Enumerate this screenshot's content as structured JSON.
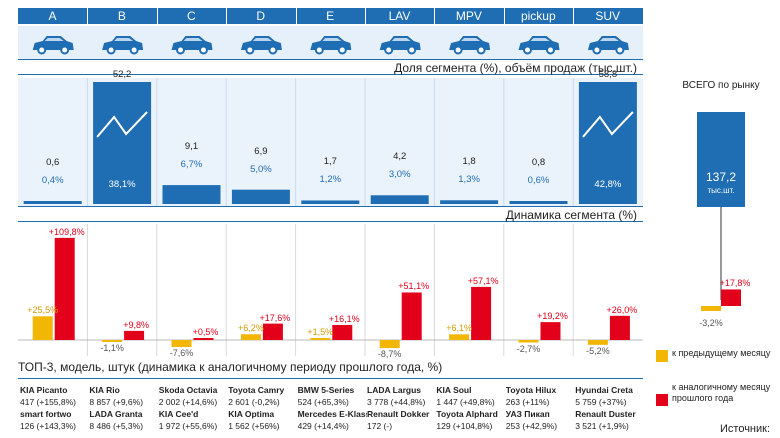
{
  "colors": {
    "blue": "#1f6db3",
    "light": "#eaf2fb",
    "yellow": "#f2b705",
    "red": "#e3001b",
    "pos": "#e3001b",
    "neg": "#d49a00"
  },
  "chart_data": {
    "type": "bar",
    "title": "Доля сегмента (%), объём продаж (тыс.шт.)",
    "categories": [
      "A",
      "B",
      "C",
      "D",
      "E",
      "LAV",
      "MPV",
      "pickup",
      "SUV"
    ],
    "sales_labels": [
      "0,6",
      "52,2",
      "9,1",
      "6,9",
      "1,7",
      "4,2",
      "1,8",
      "0,8",
      "58,8"
    ],
    "sales": [
      0.6,
      52.2,
      9.1,
      6.9,
      1.7,
      4.2,
      1.8,
      0.8,
      58.8
    ],
    "share_labels": [
      "0,4%",
      "38,1%",
      "6,7%",
      "5,0%",
      "1,2%",
      "3,0%",
      "1,3%",
      "0,6%",
      "42,8%"
    ],
    "share": [
      0.4,
      38.1,
      6.7,
      5.0,
      1.2,
      3.0,
      1.3,
      0.6,
      42.8
    ],
    "total_title": "ВСЕГО по рынку",
    "total_value": "137,2",
    "total_unit": "тыс.шт.",
    "dynamics_title": "Динамика сегмента (%)",
    "mom_labels": [
      "+25,5%",
      "-1,1%",
      "-7,6%",
      "+6,2%",
      "+1,5%",
      "-8,7%",
      "+6,1%",
      "-2,7%",
      "-5,2%"
    ],
    "mom": [
      25.5,
      -1.1,
      -7.6,
      6.2,
      1.5,
      -8.7,
      6.1,
      -2.7,
      -5.2
    ],
    "yoy_labels": [
      "+109,8%",
      "+9,8%",
      "+0,5%",
      "+17,6%",
      "+16,1%",
      "+51,1%",
      "+57,1%",
      "+19,2%",
      "+26,0%"
    ],
    "yoy": [
      109.8,
      9.8,
      0.5,
      17.6,
      16.1,
      51.1,
      57.1,
      19.2,
      26.0
    ],
    "total_mom_label": "-3,2%",
    "total_mom": -3.2,
    "total_yoy_label": "+17,8%",
    "total_yoy": 17.8,
    "legend": {
      "mom": "к предыдущему месяцу",
      "yoy": "к аналогичному месяцу прошлого года"
    },
    "source_label": "Источник:"
  },
  "top3": {
    "title": "ТОП-3, модель, штук (динамика к аналогичному периоду прошлого года, %)",
    "columns": [
      [
        "KIA Picanto",
        "417 (+155,8%)",
        "smart fortwo",
        "126 (+143,3%)"
      ],
      [
        "KIA Rio",
        "8 857 (+9,6%)",
        "LADA Granta",
        "8 486 (+5,3%)"
      ],
      [
        "Skoda Octavia",
        "2 002 (+14,6%)",
        "KIA Cee'd",
        "1 972 (+55,6%)"
      ],
      [
        "Toyota Camry",
        "2 601 (-0,2%)",
        "KIA Optima",
        "1 562 (+56%)"
      ],
      [
        "BMW 5-Series",
        "524 (+65,3%)",
        "Mercedes E-Klasse",
        "429 (+14,4%)"
      ],
      [
        "LADA Largus",
        "3 778 (+44,8%)",
        "Renault Dokker",
        "172 (-)"
      ],
      [
        "KIA Soul",
        "1 447 (+49,8%)",
        "Toyota Alphard",
        "129 (+104,8%)"
      ],
      [
        "Toyota Hilux",
        "263 (+11%)",
        "УАЗ Пикап",
        "253 (+42,9%)"
      ],
      [
        "Hyundai Creta",
        "5 759 (+37%)",
        "Renault Duster",
        "3 521 (+1,9%)"
      ]
    ]
  }
}
